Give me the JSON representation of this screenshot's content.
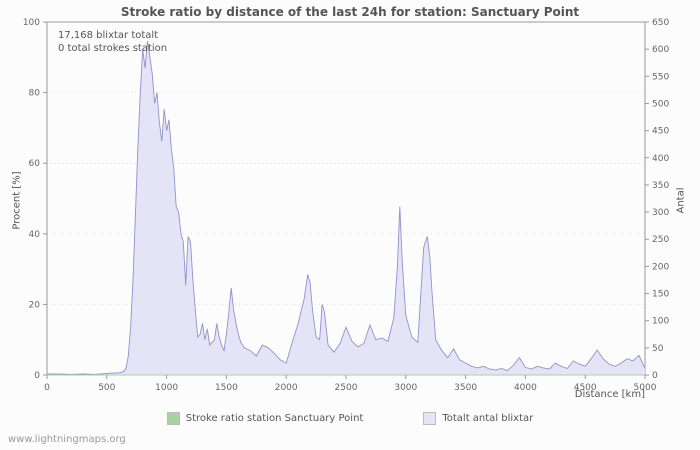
{
  "title": "Stroke ratio by distance of the last 24h for station: Sanctuary Point",
  "annotations": {
    "total_strikes": "17,168 blixtar totalt",
    "station_strokes": "0 total strokes station"
  },
  "axes": {
    "left_label": "Procent  [%]",
    "right_label": "Antal",
    "x_label": "Distance  [km]"
  },
  "legend": [
    {
      "label": "Stroke ratio station Sanctuary Point",
      "color": "#a6d3a0"
    },
    {
      "label": "Totalt antal blixtar",
      "color": "#e4e4f6"
    }
  ],
  "watermark": "www.lightningmaps.org",
  "chart_data": {
    "type": "area",
    "title": "Stroke ratio by distance of the last 24h for station: Sanctuary Point",
    "xlabel": "Distance [km]",
    "ylabel_left": "Procent [%]",
    "ylabel_right": "Antal",
    "x_range": [
      0,
      5000
    ],
    "left_ylim": [
      0,
      100
    ],
    "right_ylim": [
      0,
      650
    ],
    "x_ticks": [
      0,
      500,
      1000,
      1500,
      2000,
      2500,
      3000,
      3500,
      4000,
      4500,
      5000
    ],
    "left_ticks": [
      0,
      20,
      40,
      60,
      80,
      100
    ],
    "right_ticks": [
      0,
      50,
      100,
      150,
      200,
      250,
      300,
      350,
      400,
      450,
      500,
      550,
      600,
      650
    ],
    "grid": "horizontal-dotted",
    "legend_position": "bottom",
    "series": [
      {
        "name": "Totalt antal blixtar",
        "axis": "right",
        "fill": "#e4e4f6",
        "stroke": "#9191cf",
        "points": [
          [
            0,
            2
          ],
          [
            100,
            2
          ],
          [
            200,
            1
          ],
          [
            300,
            2
          ],
          [
            400,
            1
          ],
          [
            500,
            3
          ],
          [
            600,
            4
          ],
          [
            640,
            6
          ],
          [
            660,
            12
          ],
          [
            680,
            35
          ],
          [
            700,
            90
          ],
          [
            720,
            180
          ],
          [
            740,
            300
          ],
          [
            760,
            420
          ],
          [
            780,
            520
          ],
          [
            800,
            600
          ],
          [
            820,
            565
          ],
          [
            840,
            615
          ],
          [
            860,
            585
          ],
          [
            880,
            555
          ],
          [
            900,
            500
          ],
          [
            920,
            520
          ],
          [
            940,
            465
          ],
          [
            960,
            430
          ],
          [
            980,
            490
          ],
          [
            1000,
            450
          ],
          [
            1020,
            470
          ],
          [
            1040,
            415
          ],
          [
            1060,
            380
          ],
          [
            1080,
            310
          ],
          [
            1100,
            300
          ],
          [
            1120,
            260
          ],
          [
            1140,
            245
          ],
          [
            1160,
            165
          ],
          [
            1180,
            255
          ],
          [
            1200,
            245
          ],
          [
            1220,
            175
          ],
          [
            1240,
            120
          ],
          [
            1260,
            70
          ],
          [
            1280,
            75
          ],
          [
            1300,
            95
          ],
          [
            1320,
            65
          ],
          [
            1340,
            85
          ],
          [
            1360,
            55
          ],
          [
            1380,
            60
          ],
          [
            1400,
            65
          ],
          [
            1420,
            95
          ],
          [
            1440,
            70
          ],
          [
            1460,
            55
          ],
          [
            1480,
            45
          ],
          [
            1500,
            75
          ],
          [
            1520,
            115
          ],
          [
            1540,
            160
          ],
          [
            1560,
            120
          ],
          [
            1580,
            95
          ],
          [
            1600,
            75
          ],
          [
            1620,
            60
          ],
          [
            1650,
            50
          ],
          [
            1700,
            45
          ],
          [
            1750,
            35
          ],
          [
            1800,
            55
          ],
          [
            1850,
            50
          ],
          [
            1900,
            40
          ],
          [
            1950,
            28
          ],
          [
            2000,
            22
          ],
          [
            2050,
            60
          ],
          [
            2100,
            95
          ],
          [
            2150,
            140
          ],
          [
            2180,
            185
          ],
          [
            2200,
            170
          ],
          [
            2220,
            120
          ],
          [
            2250,
            70
          ],
          [
            2280,
            65
          ],
          [
            2300,
            130
          ],
          [
            2320,
            115
          ],
          [
            2350,
            55
          ],
          [
            2400,
            42
          ],
          [
            2450,
            58
          ],
          [
            2500,
            88
          ],
          [
            2550,
            62
          ],
          [
            2600,
            52
          ],
          [
            2650,
            58
          ],
          [
            2700,
            92
          ],
          [
            2750,
            65
          ],
          [
            2800,
            68
          ],
          [
            2850,
            62
          ],
          [
            2900,
            105
          ],
          [
            2930,
            200
          ],
          [
            2950,
            310
          ],
          [
            2970,
            210
          ],
          [
            3000,
            110
          ],
          [
            3050,
            70
          ],
          [
            3100,
            60
          ],
          [
            3150,
            235
          ],
          [
            3180,
            255
          ],
          [
            3200,
            220
          ],
          [
            3220,
            150
          ],
          [
            3250,
            65
          ],
          [
            3300,
            45
          ],
          [
            3350,
            32
          ],
          [
            3400,
            48
          ],
          [
            3450,
            28
          ],
          [
            3500,
            22
          ],
          [
            3550,
            16
          ],
          [
            3600,
            13
          ],
          [
            3650,
            16
          ],
          [
            3700,
            11
          ],
          [
            3750,
            9
          ],
          [
            3800,
            12
          ],
          [
            3850,
            8
          ],
          [
            3900,
            18
          ],
          [
            3950,
            32
          ],
          [
            4000,
            14
          ],
          [
            4050,
            11
          ],
          [
            4100,
            16
          ],
          [
            4150,
            13
          ],
          [
            4200,
            11
          ],
          [
            4250,
            22
          ],
          [
            4300,
            16
          ],
          [
            4350,
            12
          ],
          [
            4400,
            26
          ],
          [
            4450,
            20
          ],
          [
            4500,
            16
          ],
          [
            4550,
            30
          ],
          [
            4600,
            46
          ],
          [
            4650,
            30
          ],
          [
            4700,
            20
          ],
          [
            4750,
            16
          ],
          [
            4800,
            22
          ],
          [
            4850,
            30
          ],
          [
            4900,
            26
          ],
          [
            4950,
            36
          ],
          [
            5000,
            12
          ]
        ]
      },
      {
        "name": "Stroke ratio station Sanctuary Point",
        "axis": "left",
        "fill": "none",
        "stroke": "#a6d3a0",
        "points": [
          [
            0,
            0
          ],
          [
            5000,
            0
          ]
        ]
      }
    ]
  }
}
